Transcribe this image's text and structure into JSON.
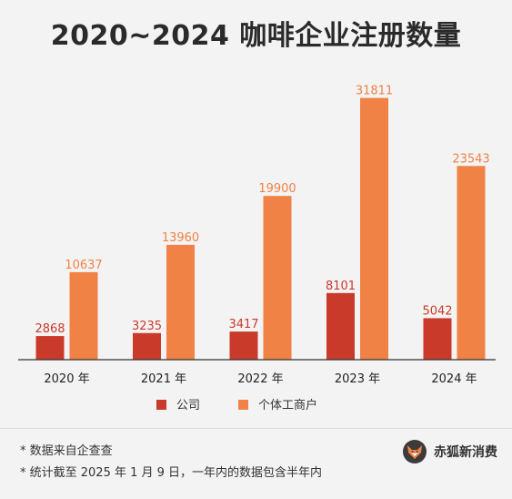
{
  "chart_data": {
    "type": "bar",
    "title": "2020~2024 咖啡企业注册数量",
    "categories": [
      "2020 年",
      "2021 年",
      "2022 年",
      "2023 年",
      "2024 年"
    ],
    "series": [
      {
        "name": "公司",
        "color": "#c93a2b",
        "values": [
          2868,
          3235,
          3417,
          8101,
          5042
        ]
      },
      {
        "name": "个体工商户",
        "color": "#f08245",
        "values": [
          10637,
          13960,
          19900,
          31811,
          23543
        ]
      }
    ],
    "ylim": [
      0,
      33200
    ],
    "grid": false,
    "legend_position": "bottom"
  },
  "footnotes": [
    "* 数据来自企查查",
    "* 统计截至 2025 年 1 月 9 日，一年内的数据包含半年内"
  ],
  "brand": {
    "name": "赤狐新消费",
    "icon": "fox-icon"
  }
}
